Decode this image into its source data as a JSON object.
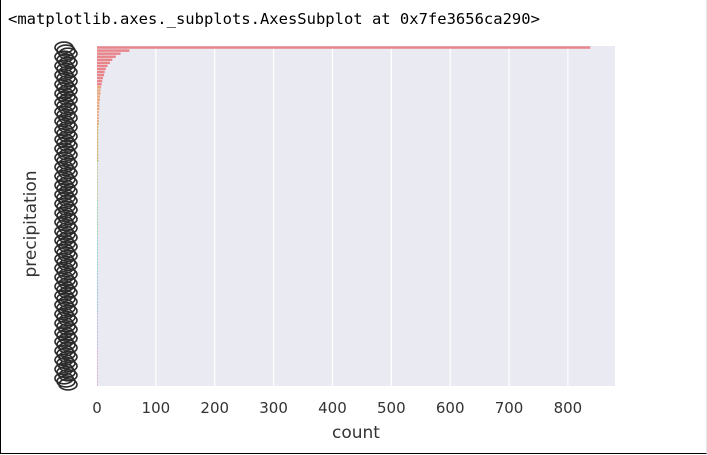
{
  "output_repr": "<matplotlib.axes._subplots.AxesSubplot at 0x7fe3656ca290>",
  "chart_data": {
    "type": "bar",
    "orientation": "horizontal",
    "title": "",
    "xlabel": "count",
    "ylabel": "precipitation",
    "xlim": [
      0,
      880
    ],
    "xticks": [
      0,
      100,
      200,
      300,
      400,
      500,
      600,
      700,
      800
    ],
    "grid": true,
    "background": "#eaeaf2",
    "palette": [
      "#e8848a",
      "#e8a87a",
      "#d4b06a",
      "#9fbf6a",
      "#6ec48a",
      "#5fbfb8",
      "#6fa8d8",
      "#a89ae0",
      "#d890c8"
    ],
    "category_count": 111,
    "values": [
      838,
      55,
      40,
      32,
      26,
      22,
      18,
      15,
      13,
      12,
      10,
      9,
      8,
      7,
      6,
      6,
      5,
      5,
      4,
      4,
      4,
      3,
      3,
      3,
      3,
      3,
      2,
      2,
      2,
      2,
      2,
      2,
      2,
      2,
      2,
      2,
      2,
      2,
      1,
      1,
      1,
      1,
      1,
      1,
      1,
      1,
      1,
      1,
      1,
      1,
      1,
      1,
      1,
      1,
      1,
      1,
      1,
      1,
      1,
      1,
      1,
      1,
      1,
      1,
      1,
      1,
      1,
      1,
      1,
      1,
      1,
      1,
      1,
      1,
      1,
      1,
      1,
      1,
      1,
      1,
      1,
      1,
      1,
      1,
      1,
      1,
      1,
      1,
      1,
      1,
      1,
      1,
      1,
      1,
      1,
      1,
      1,
      1,
      1,
      1,
      1,
      1,
      1,
      1,
      1,
      1,
      1,
      1,
      1,
      1,
      1
    ]
  }
}
